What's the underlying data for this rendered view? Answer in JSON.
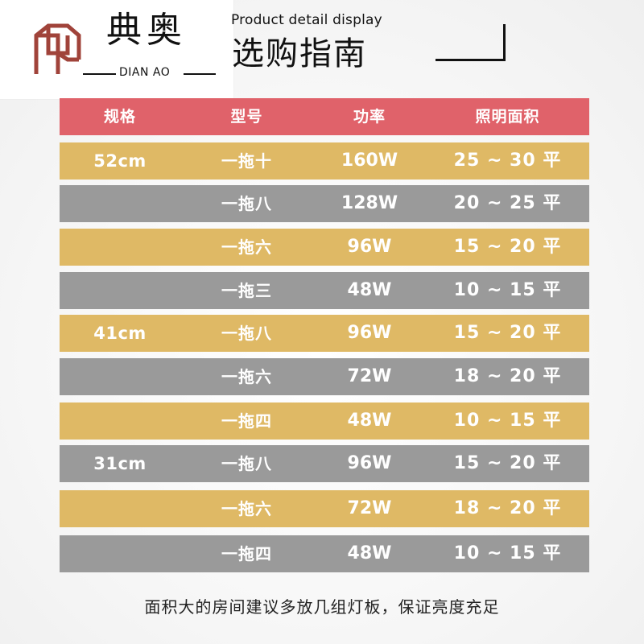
{
  "logo": {
    "cn": "典奥",
    "en": "DIAN AO",
    "brand_color": "#a0433a"
  },
  "header": {
    "subtitle_en": "Product detail display",
    "title_cn": "选购指南"
  },
  "table": {
    "header": {
      "spec": "规格",
      "model": "型号",
      "power": "功率",
      "area": "照明面积"
    },
    "rows": [
      {
        "spec": "52cm",
        "model": "一拖十",
        "power": "160W",
        "area": "25 ~ 30 平",
        "color": "gold"
      },
      {
        "spec": "",
        "model": "一拖八",
        "power": "128W",
        "area": "20 ~ 25 平",
        "color": "gray"
      },
      {
        "spec": "",
        "model": "一拖六",
        "power": "96W",
        "area": "15 ~ 20 平",
        "color": "gold"
      },
      {
        "spec": "",
        "model": "一拖三",
        "power": "48W",
        "area": "10 ~ 15 平",
        "color": "gray"
      },
      {
        "spec": "41cm",
        "model": "一拖八",
        "power": "96W",
        "area": "15 ~ 20 平",
        "color": "gold"
      },
      {
        "spec": "",
        "model": "一拖六",
        "power": "72W",
        "area": "18 ~ 20 平",
        "color": "gray"
      },
      {
        "spec": "",
        "model": "一拖四",
        "power": "48W",
        "area": "10 ~ 15 平",
        "color": "gold"
      },
      {
        "spec": "31cm",
        "model": "一拖八",
        "power": "96W",
        "area": "15 ~ 20 平",
        "color": "gray"
      },
      {
        "spec": "",
        "model": "一拖六",
        "power": "72W",
        "area": "18 ~ 20 平",
        "color": "gold"
      },
      {
        "spec": "",
        "model": "一拖四",
        "power": "48W",
        "area": "10 ~ 15 平",
        "color": "gray"
      }
    ]
  },
  "colors": {
    "header_row": "#e0626a",
    "gold_row": "#dfb965",
    "gray_row": "#9a9a9a"
  },
  "footnote": "面积大的房间建议多放几组灯板，保证亮度充足"
}
